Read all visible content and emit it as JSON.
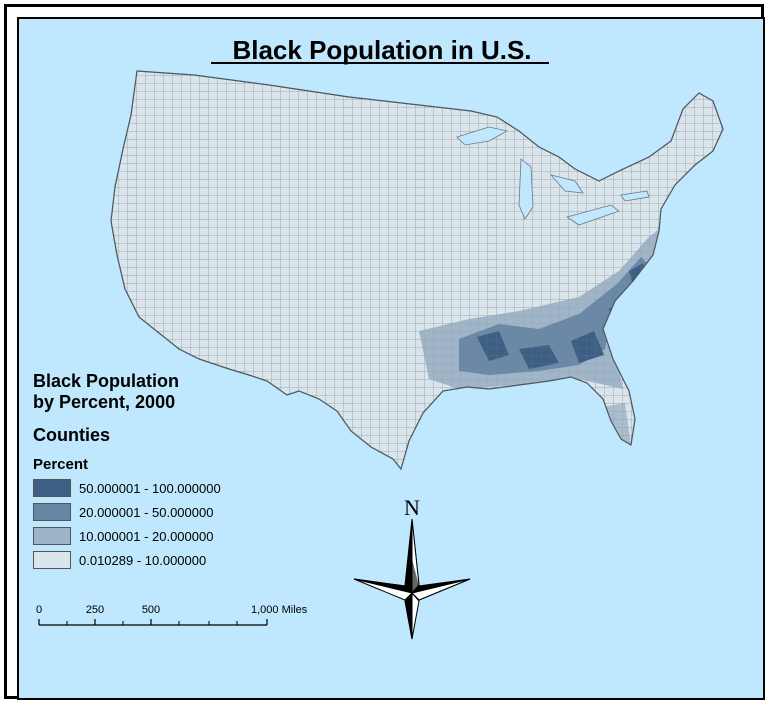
{
  "map": {
    "title": "Black Population in U.S.",
    "background_color": "#bfe7fd",
    "land_color": "#d9e5ea"
  },
  "legend": {
    "title_line1": "Black Population",
    "title_line2": "by Percent, 2000",
    "layer": "Counties",
    "field": "Percent",
    "classes": [
      {
        "label": "50.000001 - 100.000000",
        "color": "#3d5f84"
      },
      {
        "label": "20.000001 - 50.000000",
        "color": "#6886a5"
      },
      {
        "label": "10.000001 - 20.000000",
        "color": "#9db3c6"
      },
      {
        "label": "0.010289 - 10.000000",
        "color": "#d9e5ea"
      }
    ]
  },
  "north_arrow": {
    "label": "N"
  },
  "scale_bar": {
    "labels": [
      "0",
      "250",
      "500",
      "1,000 Miles"
    ]
  }
}
